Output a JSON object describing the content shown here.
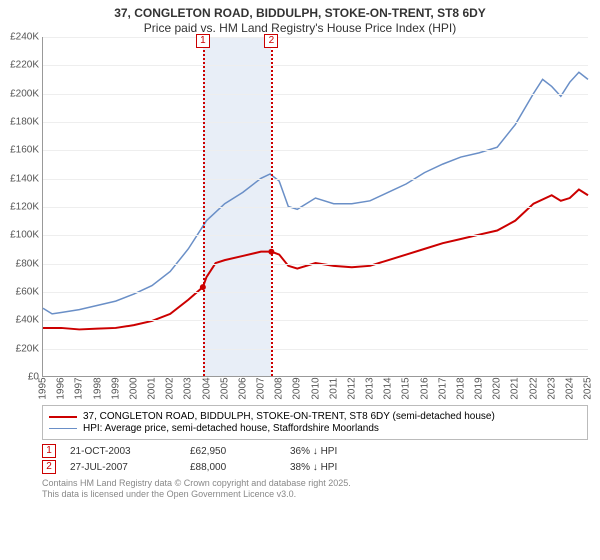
{
  "title_line1": "37, CONGLETON ROAD, BIDDULPH, STOKE-ON-TRENT, ST8 6DY",
  "title_line2": "Price paid vs. HM Land Registry's House Price Index (HPI)",
  "chart": {
    "type": "line",
    "background_color": "#ffffff",
    "grid_color": "#eeeeee",
    "axis_color": "#999999",
    "ylim": [
      0,
      240000
    ],
    "ytick_step": 20000,
    "ytick_labels": [
      "£0",
      "£20K",
      "£40K",
      "£60K",
      "£80K",
      "£100K",
      "£120K",
      "£140K",
      "£160K",
      "£180K",
      "£200K",
      "£220K",
      "£240K"
    ],
    "xlim": [
      1995,
      2025
    ],
    "xtick_step": 1,
    "xticks": [
      1995,
      1996,
      1997,
      1998,
      1999,
      2000,
      2001,
      2002,
      2003,
      2004,
      2005,
      2006,
      2007,
      2008,
      2009,
      2010,
      2011,
      2012,
      2013,
      2014,
      2015,
      2016,
      2017,
      2018,
      2019,
      2020,
      2021,
      2022,
      2023,
      2024,
      2025
    ],
    "marker_band": {
      "from": 2003.8,
      "to": 2007.57,
      "color": "#e8eef7"
    },
    "markers": [
      {
        "id": "1",
        "x": 2003.8,
        "color": "#cc0000"
      },
      {
        "id": "2",
        "x": 2007.57,
        "color": "#cc0000"
      }
    ],
    "series": [
      {
        "name": "property",
        "color": "#cc0000",
        "width": 2,
        "points": [
          [
            1995,
            34000
          ],
          [
            1996,
            34000
          ],
          [
            1997,
            33000
          ],
          [
            1998,
            33500
          ],
          [
            1999,
            34000
          ],
          [
            2000,
            36000
          ],
          [
            2001,
            39000
          ],
          [
            2002,
            44000
          ],
          [
            2003,
            54000
          ],
          [
            2003.8,
            62950
          ],
          [
            2004,
            70000
          ],
          [
            2004.5,
            80000
          ],
          [
            2005,
            82000
          ],
          [
            2006,
            85000
          ],
          [
            2007,
            88000
          ],
          [
            2007.57,
            88000
          ],
          [
            2008,
            86000
          ],
          [
            2008.5,
            78000
          ],
          [
            2009,
            76000
          ],
          [
            2010,
            80000
          ],
          [
            2011,
            78000
          ],
          [
            2012,
            77000
          ],
          [
            2013,
            78000
          ],
          [
            2014,
            82000
          ],
          [
            2015,
            86000
          ],
          [
            2016,
            90000
          ],
          [
            2017,
            94000
          ],
          [
            2018,
            97000
          ],
          [
            2019,
            100000
          ],
          [
            2020,
            103000
          ],
          [
            2021,
            110000
          ],
          [
            2022,
            122000
          ],
          [
            2023,
            128000
          ],
          [
            2023.5,
            124000
          ],
          [
            2024,
            126000
          ],
          [
            2024.5,
            132000
          ],
          [
            2025,
            128000
          ]
        ]
      },
      {
        "name": "hpi",
        "color": "#6a8fc7",
        "width": 1.5,
        "points": [
          [
            1995,
            48000
          ],
          [
            1995.5,
            44000
          ],
          [
            1996,
            45000
          ],
          [
            1997,
            47000
          ],
          [
            1998,
            50000
          ],
          [
            1999,
            53000
          ],
          [
            2000,
            58000
          ],
          [
            2001,
            64000
          ],
          [
            2002,
            74000
          ],
          [
            2003,
            90000
          ],
          [
            2004,
            110000
          ],
          [
            2005,
            122000
          ],
          [
            2006,
            130000
          ],
          [
            2007,
            140000
          ],
          [
            2007.5,
            143000
          ],
          [
            2008,
            138000
          ],
          [
            2008.5,
            120000
          ],
          [
            2009,
            118000
          ],
          [
            2010,
            126000
          ],
          [
            2011,
            122000
          ],
          [
            2012,
            122000
          ],
          [
            2013,
            124000
          ],
          [
            2014,
            130000
          ],
          [
            2015,
            136000
          ],
          [
            2016,
            144000
          ],
          [
            2017,
            150000
          ],
          [
            2018,
            155000
          ],
          [
            2019,
            158000
          ],
          [
            2020,
            162000
          ],
          [
            2021,
            178000
          ],
          [
            2022,
            200000
          ],
          [
            2022.5,
            210000
          ],
          [
            2023,
            205000
          ],
          [
            2023.5,
            198000
          ],
          [
            2024,
            208000
          ],
          [
            2024.5,
            215000
          ],
          [
            2025,
            210000
          ]
        ]
      }
    ]
  },
  "legend": {
    "items": [
      {
        "color": "#cc0000",
        "width": 2,
        "label": "37, CONGLETON ROAD, BIDDULPH, STOKE-ON-TRENT, ST8 6DY (semi-detached house)"
      },
      {
        "color": "#6a8fc7",
        "width": 1.5,
        "label": "HPI: Average price, semi-detached house, Staffordshire Moorlands"
      }
    ]
  },
  "marker_table": [
    {
      "id": "1",
      "date": "21-OCT-2003",
      "price": "£62,950",
      "delta": "36% ↓ HPI"
    },
    {
      "id": "2",
      "date": "27-JUL-2007",
      "price": "£88,000",
      "delta": "38% ↓ HPI"
    }
  ],
  "footer_line1": "Contains HM Land Registry data © Crown copyright and database right 2025.",
  "footer_line2": "This data is licensed under the Open Government Licence v3.0.",
  "label_fontsize": 10,
  "title_fontsize": 12
}
